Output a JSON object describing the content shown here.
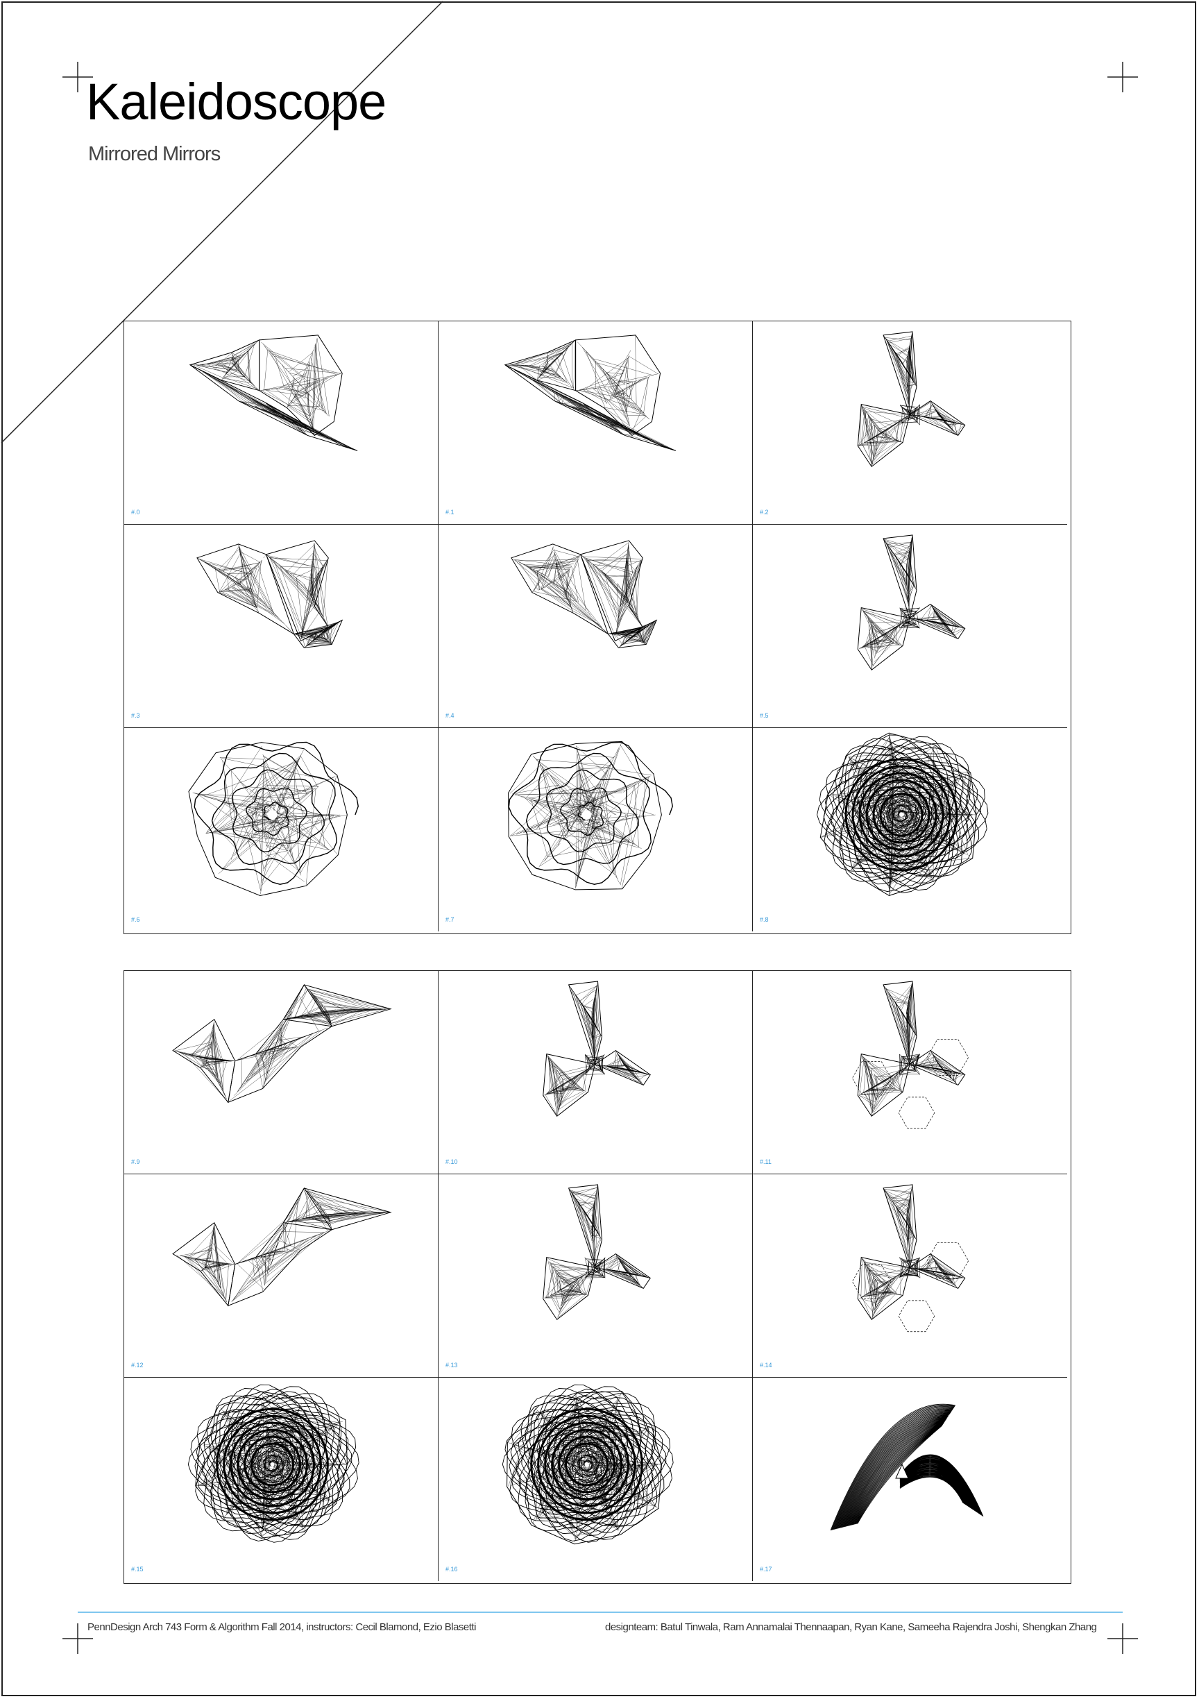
{
  "header": {
    "title": "Kaleidoscope",
    "subtitle": "Mirrored Mirrors"
  },
  "colors": {
    "label": "#3a9ad9",
    "footer_rule": "#7fc6ef",
    "ink": "#000000"
  },
  "panels": [
    {
      "label": "#.0",
      "form": "fold"
    },
    {
      "label": "#.1",
      "form": "fold"
    },
    {
      "label": "#.2",
      "form": "propeller"
    },
    {
      "label": "#.3",
      "form": "hook"
    },
    {
      "label": "#.4",
      "form": "hook"
    },
    {
      "label": "#.5",
      "form": "propeller"
    },
    {
      "label": "#.6",
      "form": "spiral"
    },
    {
      "label": "#.7",
      "form": "spiral"
    },
    {
      "label": "#.8",
      "form": "dense-spiral"
    },
    {
      "label": "#.9",
      "form": "zigzag"
    },
    {
      "label": "#.10",
      "form": "propeller"
    },
    {
      "label": "#.11",
      "form": "propeller-hex"
    },
    {
      "label": "#.12",
      "form": "zigzag"
    },
    {
      "label": "#.13",
      "form": "propeller"
    },
    {
      "label": "#.14",
      "form": "propeller-hex"
    },
    {
      "label": "#.15",
      "form": "dense-spiral"
    },
    {
      "label": "#.16",
      "form": "dense-spiral"
    },
    {
      "label": "#.17",
      "form": "twist"
    }
  ],
  "footer": {
    "left": "PennDesign Arch 743 Form & Algorithm Fall 2014, instructors: Cecil Blamond, Ezio Blasetti",
    "right": "designteam: Batul Tinwala, Ram Annamalai Thennaapan, Ryan Kane, Sameeha Rajendra Joshi, Shengkan Zhang"
  }
}
